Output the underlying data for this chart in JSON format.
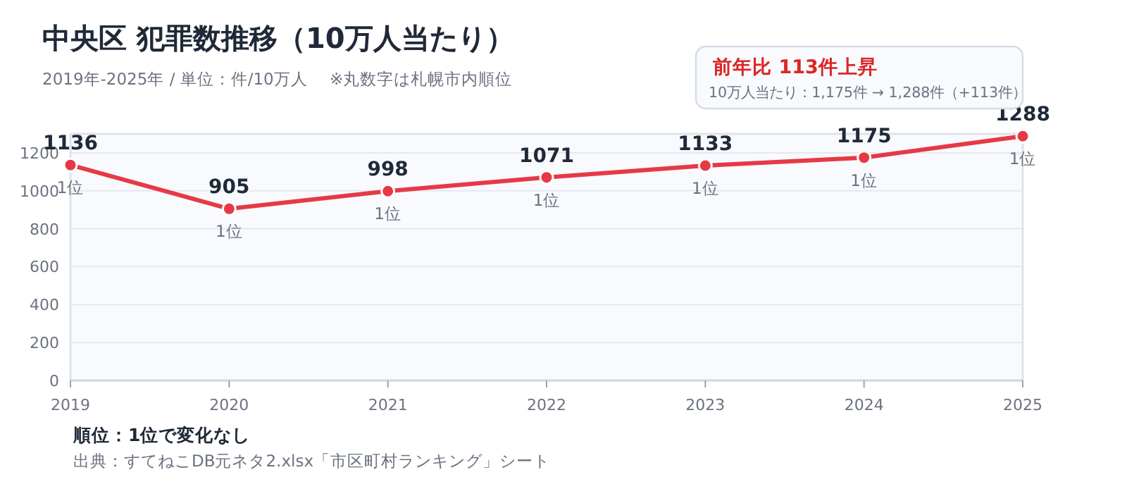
{
  "chart_data": {
    "type": "line",
    "title": "中央区  犯罪数推移（10万人当たり）",
    "subtitle": "2019年-2025年 / 単位：件/10万人　 ※丸数字は札幌市内順位",
    "categories": [
      "2019",
      "2020",
      "2021",
      "2022",
      "2023",
      "2024",
      "2025"
    ],
    "series": [
      {
        "color": "#e63946",
        "values": [
          1136,
          905,
          998,
          1071,
          1133,
          1175,
          1288
        ]
      }
    ],
    "data_labels": true,
    "ylim": [
      0,
      1300
    ],
    "yticks": [
      0,
      200,
      400,
      600,
      800,
      1000,
      1200
    ],
    "grid": "y",
    "marker": "circle",
    "line_style": "solid",
    "annotations": [
      "前年比  113件上昇",
      "10万人当たり：1,175件 → 1,288件（+113件）",
      "順位：1位で変化なし",
      "出典：すてねこDB元ネタ2.xlsx「市区町村ランキング」シート",
      {
        "text": "1位",
        "x": "2019",
        "y": 1136
      },
      {
        "text": "1位",
        "x": "2020",
        "y": 905
      },
      {
        "text": "1位",
        "x": "2021",
        "y": 998
      },
      {
        "text": "1位",
        "x": "2022",
        "y": 1071
      },
      {
        "text": "1位",
        "x": "2023",
        "y": 1133
      },
      {
        "text": "1位",
        "x": "2024",
        "y": 1175
      },
      {
        "text": "1位",
        "x": "2025",
        "y": 1288
      }
    ]
  }
}
